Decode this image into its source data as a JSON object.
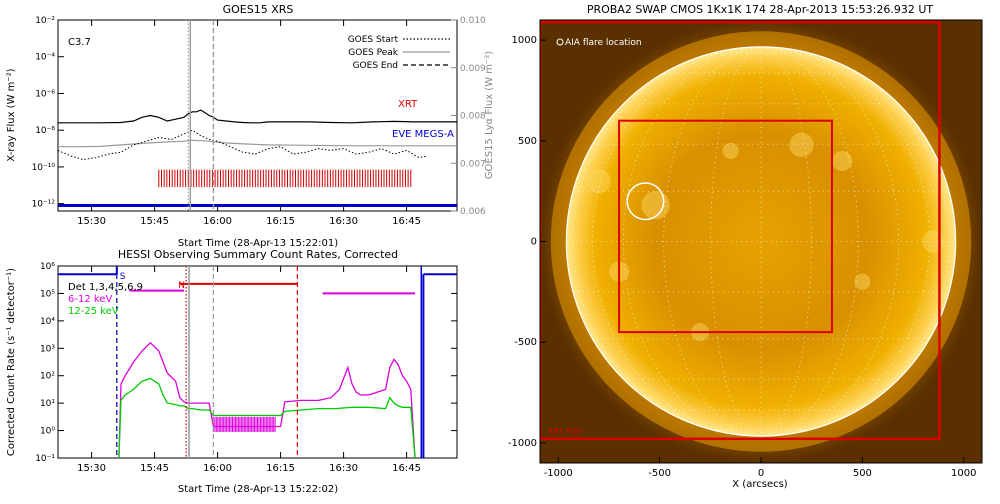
{
  "chart_data": [
    {
      "type": "line",
      "title": "GOES15 XRS",
      "xlabel": "Start Time (28-Apr-13 15:22:01)",
      "ylabel": "X-ray Flux (W m⁻²)",
      "y2label": "GOES15 Lyα Flux (W m⁻²)",
      "annotation": "C3.7",
      "x_ticks": [
        "15:30",
        "15:45",
        "16:00",
        "16:15",
        "16:30",
        "16:45"
      ],
      "x_tick_minutes": [
        8,
        23,
        38,
        53,
        68,
        83
      ],
      "xlim_minutes": [
        0,
        95
      ],
      "y_ticks": [
        "10⁻²",
        "10⁻⁴",
        "10⁻⁶",
        "10⁻⁸",
        "10⁻¹⁰",
        "10⁻¹²"
      ],
      "y_tick_exponents": [
        -2,
        -4,
        -6,
        -8,
        -10,
        -12
      ],
      "ylim_log10": [
        -12.4,
        -2
      ],
      "y2_ticks": [
        "0.010",
        "0.009",
        "0.008",
        "0.007",
        "0.006"
      ],
      "y2_tick_values": [
        0.01,
        0.009,
        0.008,
        0.007,
        0.006
      ],
      "y2lim": [
        0.006,
        0.01
      ],
      "legend_position": "top-right",
      "legend": [
        {
          "label": "GOES Start",
          "style": "dotted"
        },
        {
          "label": "GOES Peak",
          "style": "solid"
        },
        {
          "label": "GOES End",
          "style": "dashed"
        }
      ],
      "series_labels": [
        {
          "text": "XRT",
          "color": "#dd0000"
        },
        {
          "text": "EVE MEGS-A",
          "color": "#0000cc"
        }
      ],
      "goes_start_minute": 31,
      "goes_peak_minute": 31.5,
      "goes_end_minute": 37,
      "series": [
        {
          "style": "solid",
          "color": "#000000",
          "x": [
            0,
            5,
            10,
            15,
            18,
            20,
            22,
            24,
            26,
            28,
            30,
            31,
            32,
            33,
            34,
            35,
            36,
            37,
            38,
            40,
            42,
            44,
            46,
            48,
            50,
            55,
            60,
            65,
            70,
            75,
            80,
            85,
            90,
            95
          ],
          "y_log10": [
            -7.6,
            -7.6,
            -7.6,
            -7.58,
            -7.5,
            -7.3,
            -7.2,
            -7.3,
            -7.5,
            -7.4,
            -7.3,
            -7.1,
            -7.0,
            -7.0,
            -6.9,
            -7.05,
            -7.2,
            -7.3,
            -7.45,
            -7.5,
            -7.55,
            -7.58,
            -7.6,
            -7.6,
            -7.55,
            -7.55,
            -7.55,
            -7.58,
            -7.6,
            -7.55,
            -7.52,
            -7.55,
            -7.55,
            -7.55
          ]
        },
        {
          "style": "solid",
          "color": "#999999",
          "x": [
            0,
            5,
            10,
            15,
            20,
            25,
            30,
            32,
            35,
            38,
            40,
            45,
            50,
            60,
            70,
            80,
            90,
            95
          ],
          "y_log10": [
            -8.9,
            -8.9,
            -8.88,
            -8.8,
            -8.72,
            -8.65,
            -8.6,
            -8.55,
            -8.58,
            -8.65,
            -8.7,
            -8.75,
            -8.8,
            -8.82,
            -8.85,
            -8.85,
            -8.85,
            -8.85
          ]
        },
        {
          "style": "dotted",
          "color": "#000000",
          "x": [
            0,
            3,
            6,
            9,
            12,
            15,
            18,
            21,
            24,
            27,
            30,
            32,
            34,
            36,
            38,
            41,
            44,
            47,
            50,
            53,
            56,
            59,
            62,
            65,
            68,
            71,
            74,
            77,
            80,
            83,
            86,
            88
          ],
          "y_log10": [
            -9.1,
            -9.4,
            -9.6,
            -9.5,
            -9.3,
            -9.2,
            -8.8,
            -8.6,
            -8.4,
            -8.5,
            -8.2,
            -8.0,
            -8.3,
            -8.5,
            -8.6,
            -8.9,
            -9.2,
            -9.3,
            -9.0,
            -8.9,
            -9.3,
            -9.2,
            -9.0,
            -9.1,
            -9.0,
            -9.3,
            -9.2,
            -9.0,
            -9.3,
            -9.1,
            -9.5,
            -9.4
          ]
        }
      ],
      "xrt_exposures": {
        "color": "#cc0000",
        "from_minute": 24,
        "to_minute": 84,
        "count": 95,
        "y_log10_range": [
          -11.1,
          -10.15
        ]
      },
      "eve_baseline": {
        "color": "#0000cc",
        "y_log10": -12.1
      }
    },
    {
      "type": "line",
      "title": "HESSI Observing Summary Count Rates, Corrected",
      "xlabel": "Start Time (28-Apr-13 15:22:02)",
      "ylabel": "Corrected Count Rate (s⁻¹ detector⁻¹)",
      "annotation": "Det 1,3,4,5,6,9",
      "flag_labels": [
        {
          "text": "S",
          "color": "#0000cc",
          "minute": 14
        },
        {
          "text": "N",
          "color": "#dd0000",
          "minute": 31
        }
      ],
      "x_ticks": [
        "15:30",
        "15:45",
        "16:00",
        "16:15",
        "16:30",
        "16:45"
      ],
      "x_tick_minutes": [
        8,
        23,
        38,
        53,
        68,
        83
      ],
      "xlim_minutes": [
        0,
        95
      ],
      "y_ticks": [
        "10⁶",
        "10⁵",
        "10⁴",
        "10³",
        "10²",
        "10¹",
        "10⁰",
        "10⁻¹"
      ],
      "y_tick_exponents": [
        6,
        5,
        4,
        3,
        2,
        1,
        0,
        -1
      ],
      "ylim_log10": [
        -1,
        6
      ],
      "legend": [
        {
          "label": "6-12 keV",
          "color": "#dd00dd"
        },
        {
          "label": "12-25 keV",
          "color": "#00cc00"
        }
      ],
      "series": [
        {
          "name": "6-12 keV",
          "color": "#dd00dd",
          "x": [
            14.5,
            15,
            16,
            18,
            20,
            22,
            24,
            25,
            26,
            28,
            29,
            30,
            31,
            32,
            34,
            36,
            37,
            38,
            40,
            44,
            48,
            52,
            53,
            54,
            58,
            62,
            65,
            67,
            68,
            69,
            70,
            71,
            72,
            74,
            76,
            78,
            79,
            80,
            81,
            82,
            83,
            84,
            85
          ],
          "y_log10": [
            -1,
            1.7,
            2.0,
            2.5,
            2.9,
            3.2,
            2.9,
            2.5,
            2.1,
            1.8,
            1.2,
            1.05,
            1.0,
            1.0,
            1.0,
            1.0,
            0.15,
            0.15,
            0.15,
            0.15,
            0.15,
            0.15,
            0.15,
            1.05,
            1.1,
            1.1,
            1.2,
            1.5,
            1.9,
            2.3,
            1.7,
            1.4,
            1.3,
            1.3,
            1.4,
            1.5,
            2.3,
            2.6,
            2.4,
            2.0,
            1.8,
            1.5,
            -1
          ]
        },
        {
          "name": "12-25 keV",
          "color": "#00cc00",
          "x": [
            14.5,
            15,
            16,
            18,
            20,
            22,
            24,
            25,
            26,
            28,
            29,
            30,
            31,
            32,
            34,
            36,
            37,
            38,
            40,
            44,
            48,
            52,
            53,
            54,
            58,
            62,
            66,
            70,
            74,
            78,
            79,
            80,
            81,
            82,
            84,
            85
          ],
          "y_log10": [
            -1,
            1.1,
            1.3,
            1.5,
            1.8,
            1.9,
            1.7,
            1.3,
            1.0,
            0.95,
            0.9,
            0.9,
            0.8,
            0.8,
            0.75,
            0.75,
            0.55,
            0.55,
            0.55,
            0.55,
            0.55,
            0.55,
            0.55,
            0.7,
            0.75,
            0.8,
            0.8,
            0.85,
            0.85,
            0.8,
            1.2,
            1.0,
            0.9,
            0.85,
            0.85,
            -1
          ]
        }
      ],
      "attenuator_bar": {
        "color": "#dd0000",
        "from_minute": 29,
        "to_minute": 57,
        "y_log10": 5.35
      },
      "night_bar": {
        "color": "#dd00dd",
        "from_minute": 63,
        "to_minute": 85,
        "y_log10": 5.0
      },
      "saa_bar": {
        "color": "#0000cc",
        "from_minute": 0,
        "to_minute": 14,
        "y_log10": 5.7
      },
      "saa_bar_right": {
        "color": "#0000cc",
        "from_minute": 87,
        "to_minute": 95,
        "y_log10": 5.7
      },
      "pile_bar": {
        "color": "#dd00dd",
        "from_minute": 37,
        "to_minute": 52
      },
      "magenta_top_bar": {
        "color": "#dd00dd",
        "from_minute": 17,
        "to_minute": 30,
        "y_log10": 5.1
      },
      "vlines": [
        {
          "minute": 14,
          "color": "#0000aa",
          "style": "dashed"
        },
        {
          "minute": 30.5,
          "color": "#cc0000",
          "style": "dotted"
        },
        {
          "minute": 31.2,
          "color": "#999999",
          "style": "solid"
        },
        {
          "minute": 37,
          "color": "#999999",
          "style": "dashed"
        },
        {
          "minute": 57,
          "color": "#dd0000",
          "style": "dashed"
        },
        {
          "minute": 86.5,
          "color": "#0000cc",
          "style": "solid"
        }
      ]
    },
    {
      "type": "heatmap",
      "title": "PROBA2 SWAP CMOS 1Kx1K 174 28-Apr-2013 15:53:26.932 UT",
      "xlabel": "X (arcsecs)",
      "annotation": "AIA flare location",
      "x_ticks": [
        "-1000",
        "-500",
        "0",
        "500",
        "1000"
      ],
      "x_tick_values": [
        -1000,
        -500,
        0,
        500,
        1000
      ],
      "y_ticks": [
        "1000",
        "500",
        "0",
        "-500",
        "-1000"
      ],
      "y_tick_values": [
        1000,
        500,
        0,
        -500,
        -1000
      ],
      "xlim": [
        -1090,
        1090
      ],
      "ylim": [
        -1100,
        1100
      ],
      "limb_radius": 960,
      "flare_location": {
        "x": -570,
        "y": 200,
        "r": 90
      },
      "fov_box": {
        "label": "",
        "x0": -700,
        "x1": 350,
        "y0": -450,
        "y1": 600,
        "color": "#dd0000"
      },
      "xrt_fov": {
        "label": "XRT FOV",
        "x0": -1090,
        "x1": 880,
        "y0": -980,
        "y1": 1090,
        "color": "#dd0000"
      }
    }
  ]
}
